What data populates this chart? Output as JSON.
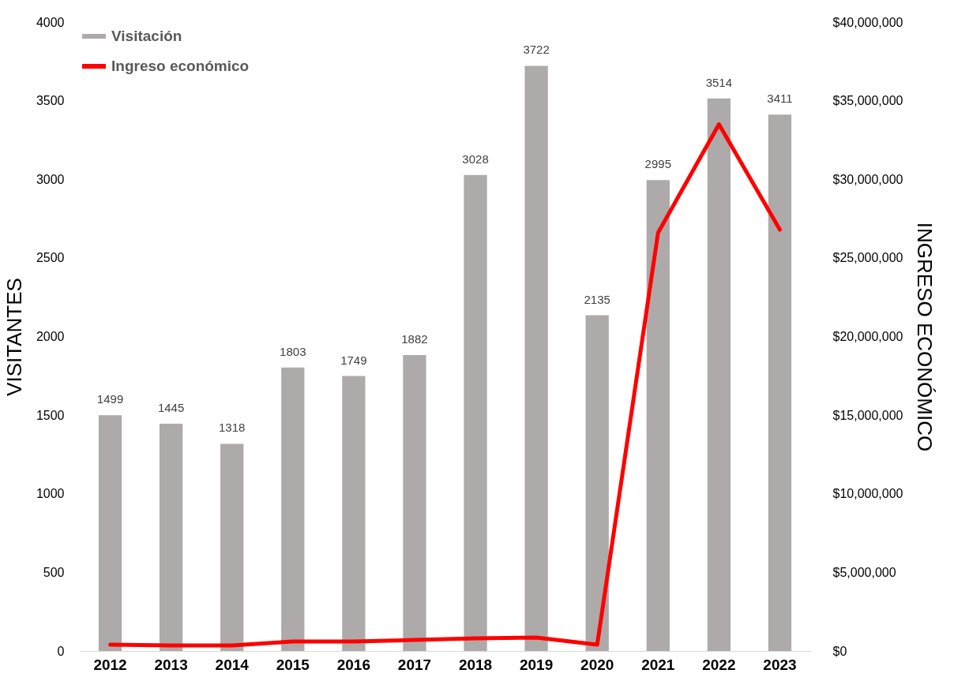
{
  "chart_data": {
    "type": "bar",
    "ylabel": "VISITANTES",
    "y2label": "INGRESO ECONÓMICO",
    "categories": [
      "2012",
      "2013",
      "2014",
      "2015",
      "2016",
      "2017",
      "2018",
      "2019",
      "2020",
      "2021",
      "2022",
      "2023"
    ],
    "series": [
      {
        "name": "Visitación",
        "color": "#aeaaaa",
        "values": [
          1499,
          1445,
          1318,
          1803,
          1749,
          1882,
          3028,
          3722,
          2135,
          2995,
          3514,
          3411
        ],
        "value_labels": [
          "1499",
          "1445",
          "1318",
          "1803",
          "1749",
          "1882",
          "3028",
          "3722",
          "2135",
          "2995",
          "3514",
          "3411"
        ]
      },
      {
        "name": "Ingreso económico",
        "type": "line",
        "axis": "y2",
        "color": "#ff0000",
        "values": [
          400000,
          350000,
          350000,
          600000,
          600000,
          700000,
          800000,
          850000,
          400000,
          26600000,
          33500000,
          26800000
        ]
      }
    ],
    "ylim": [
      0,
      4000
    ],
    "yticks": [
      0,
      500,
      1000,
      1500,
      2000,
      2500,
      3000,
      3500,
      4000
    ],
    "y2lim": [
      0,
      40000000
    ],
    "y2ticks": [
      {
        "value": 0,
        "label": "$0"
      },
      {
        "value": 5000000,
        "label": "$5,000,000"
      },
      {
        "value": 10000000,
        "label": "$10,000,000"
      },
      {
        "value": 15000000,
        "label": "$15,000,000"
      },
      {
        "value": 20000000,
        "label": "$20,000,000"
      },
      {
        "value": 25000000,
        "label": "$25,000,000"
      },
      {
        "value": 30000000,
        "label": "$30,000,000"
      },
      {
        "value": 35000000,
        "label": "$35,000,000"
      },
      {
        "value": 40000000,
        "label": "$40,000,000"
      }
    ],
    "legend": "top left",
    "grid": false,
    "marker": "none",
    "line_style": "solid"
  }
}
